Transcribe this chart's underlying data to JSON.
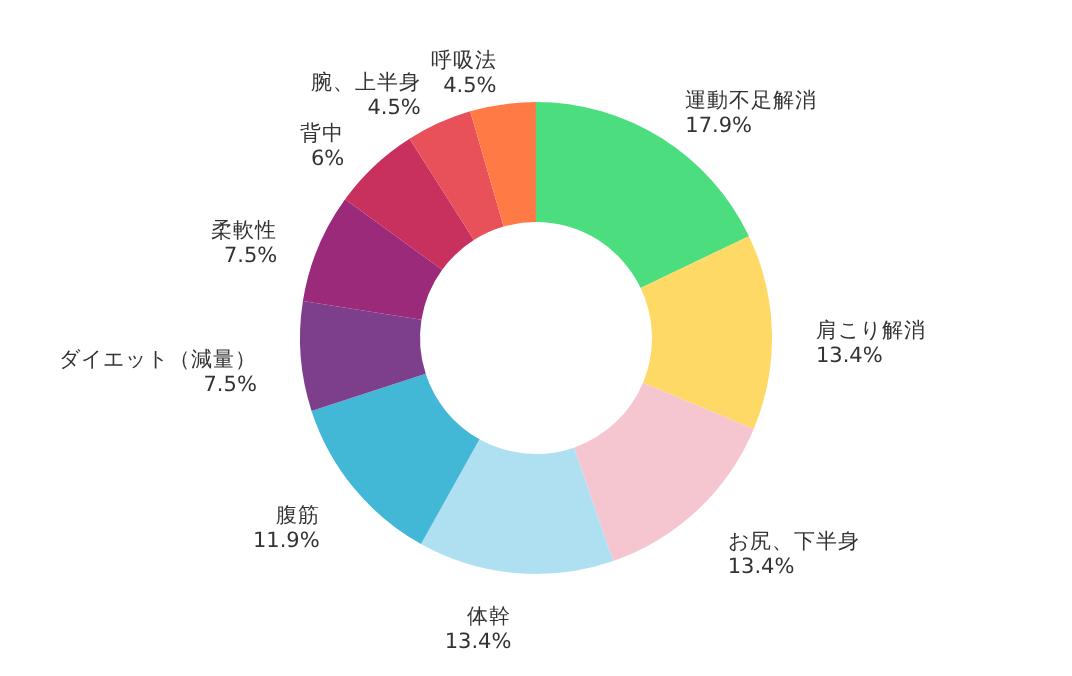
{
  "chart_data": {
    "type": "donut",
    "categories": [
      "運動不足解消",
      "肩こり解消",
      "お尻、下半身",
      "体幹",
      "腹筋",
      "ダイエット（減量）",
      "柔軟性",
      "背中",
      "腕、上半身",
      "呼吸法"
    ],
    "values": [
      17.9,
      13.4,
      13.4,
      13.4,
      11.9,
      7.5,
      7.5,
      6,
      4.5,
      4.5
    ],
    "value_labels": [
      "17.9%",
      "13.4%",
      "13.4%",
      "13.4%",
      "11.9%",
      "7.5%",
      "7.5%",
      "6%",
      "4.5%",
      "4.5%"
    ],
    "colors": [
      "#4cde7e",
      "#ffd966",
      "#f6c6d0",
      "#aee0f2",
      "#42b7d6",
      "#7d3f8c",
      "#9b2a7a",
      "#c8305e",
      "#e8505a",
      "#ff7a45"
    ]
  }
}
